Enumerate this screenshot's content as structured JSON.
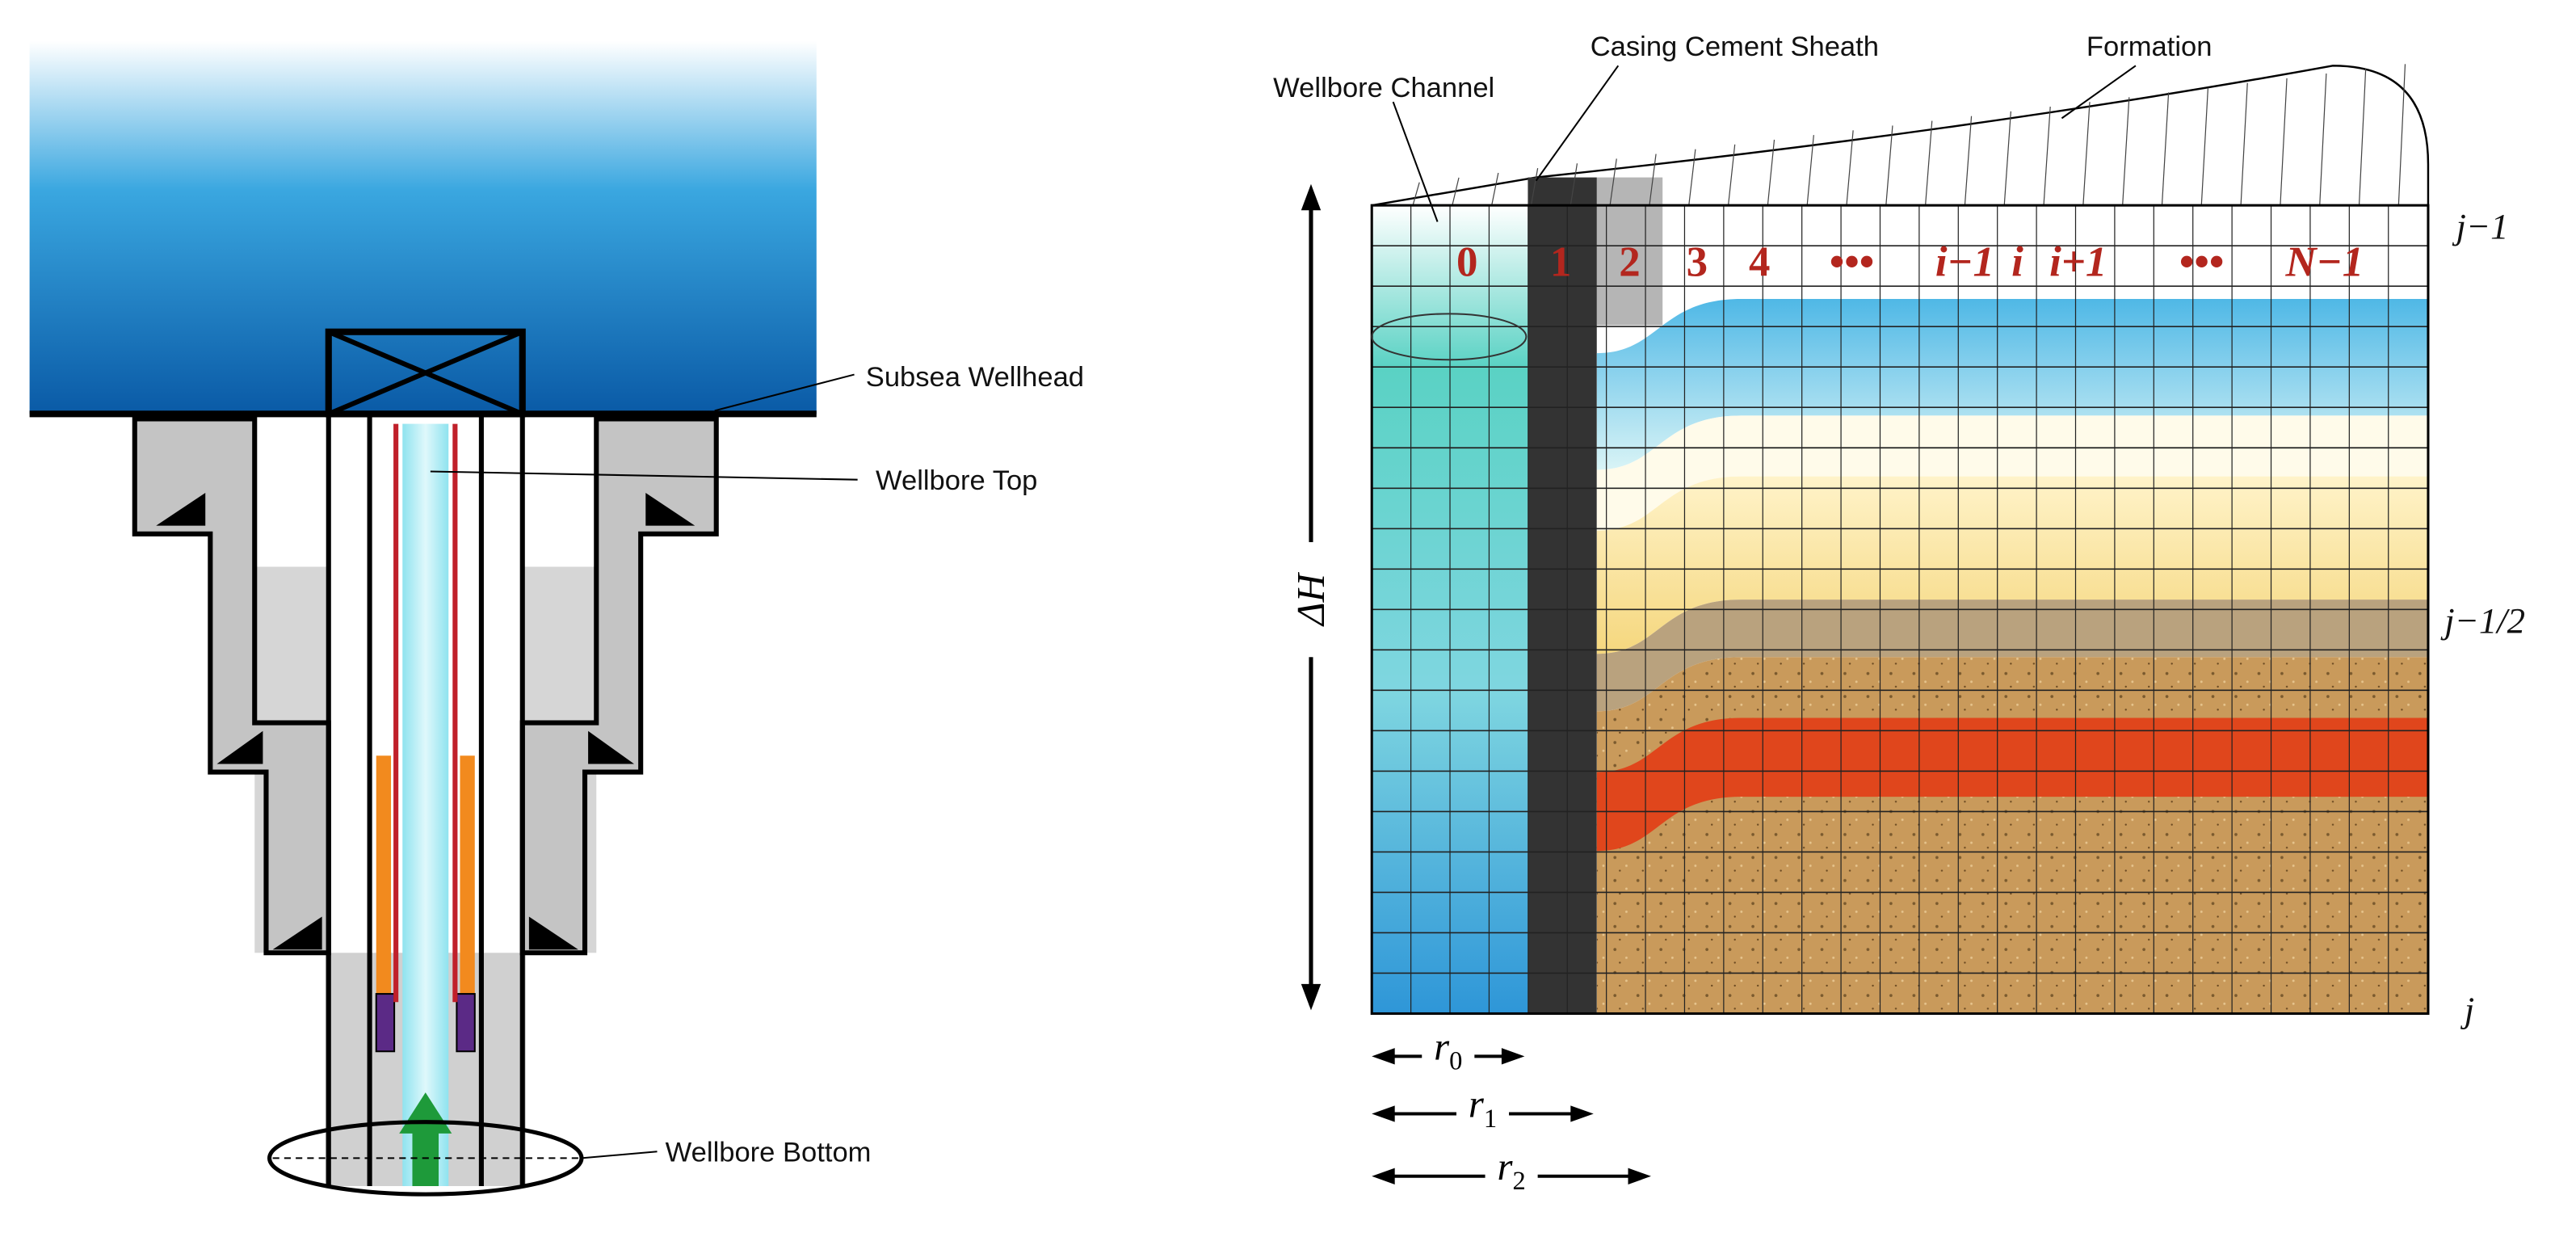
{
  "left_diagram": {
    "labels": [
      "Subsea Wellhead",
      "Wellbore Top",
      "Wellbore Bottom"
    ]
  },
  "right_diagram": {
    "labels": [
      "Wellbore Channel",
      "Casing Cement Sheath",
      "Formation"
    ],
    "cell_indices": [
      "0",
      "1",
      "2",
      "3",
      "4",
      "•••",
      "i−1",
      "i",
      "i+1",
      "•••",
      "N−1"
    ],
    "row_labels": [
      "j−1",
      "j−1/2",
      "j"
    ],
    "height_label": "ΔH",
    "radii": [
      {
        "symbol": "r",
        "subscript": "0"
      },
      {
        "symbol": "r",
        "subscript": "1"
      },
      {
        "symbol": "r",
        "subscript": "2"
      }
    ]
  }
}
